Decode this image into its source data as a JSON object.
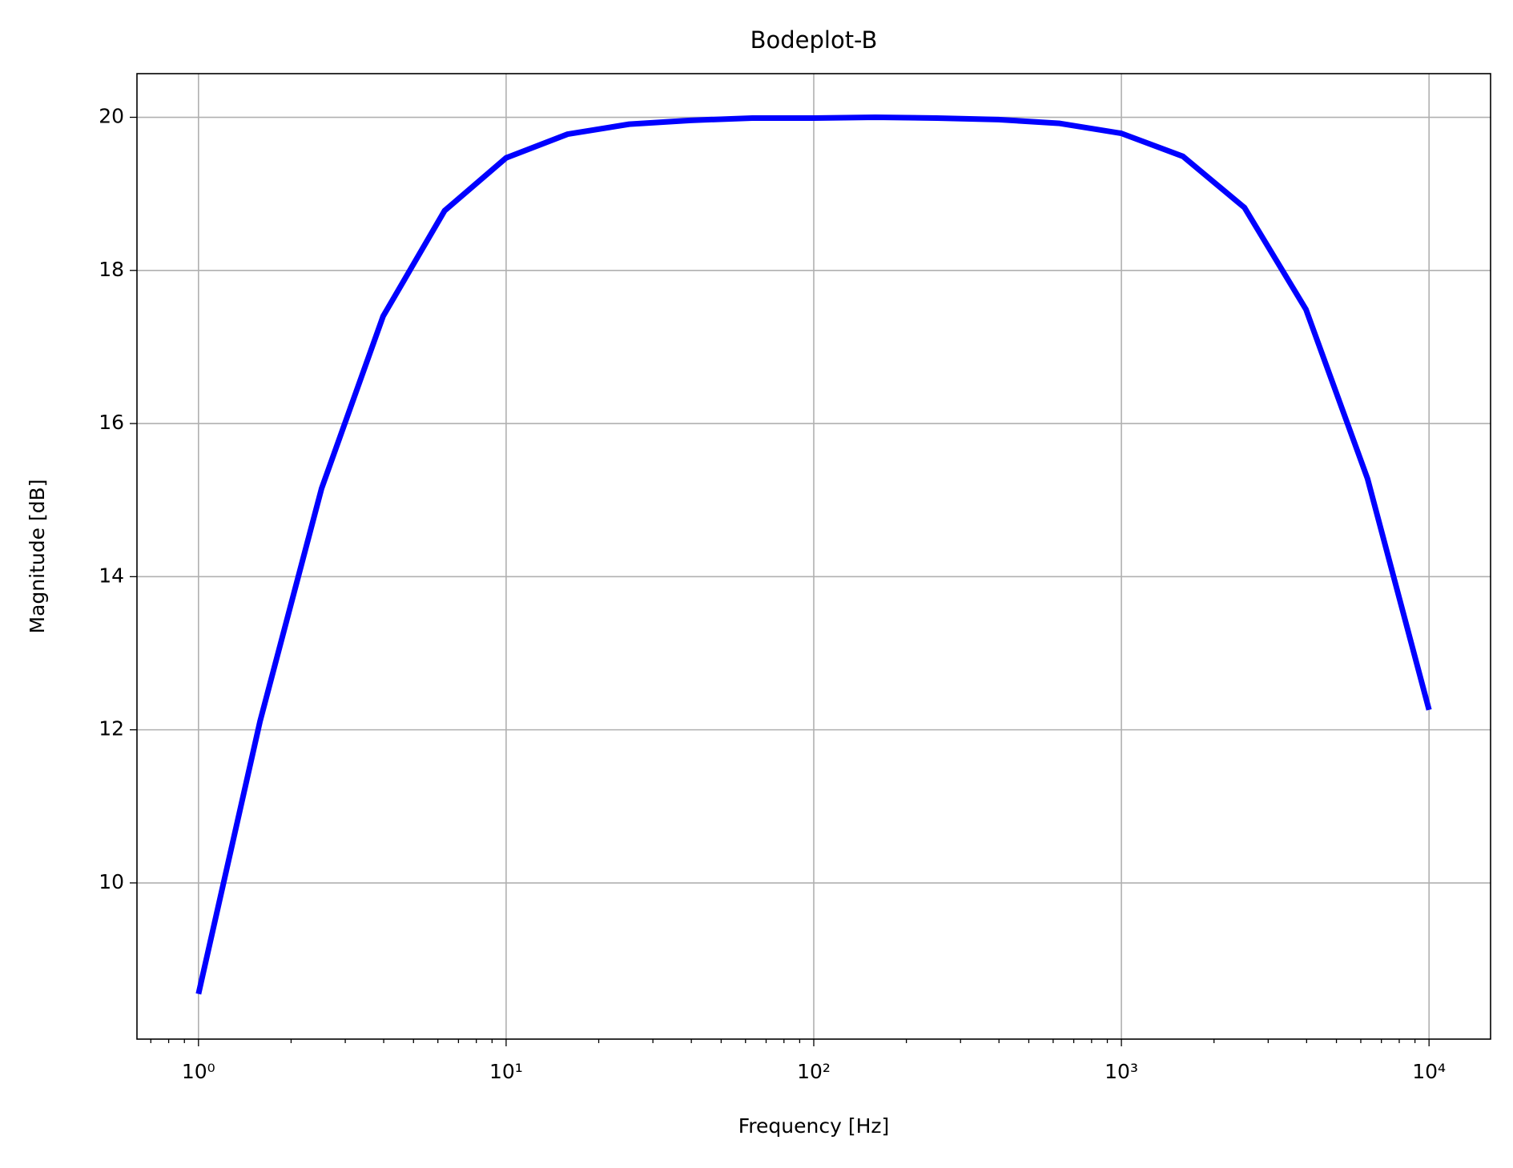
{
  "chart_data": {
    "type": "line",
    "title": "Bodeplot-B",
    "x_label": "Frequency [Hz]",
    "y_label": "Magnitude [dB]",
    "x": [
      1,
      1.585,
      2.512,
      3.981,
      6.31,
      10,
      15.85,
      25.12,
      39.81,
      63.1,
      100,
      158.5,
      251.2,
      398.1,
      631,
      1000,
      1585,
      2512,
      3981,
      6310,
      10000
    ],
    "series": [
      {
        "color": "#0000ff",
        "values": [
          8.55,
          12.11,
          15.15,
          17.4,
          18.78,
          19.47,
          19.78,
          19.91,
          19.96,
          19.99,
          19.99,
          20.0,
          19.99,
          19.97,
          19.92,
          19.79,
          19.49,
          18.82,
          17.49,
          15.28,
          12.26
        ]
      }
    ],
    "xscale": "log",
    "xlim": [
      0.631,
      15849
    ],
    "ylim": [
      7.96,
      20.57
    ],
    "xticks": [
      {
        "value": 1,
        "label": "10⁰"
      },
      {
        "value": 10,
        "label": "10¹"
      },
      {
        "value": 100,
        "label": "10²"
      },
      {
        "value": 1000,
        "label": "10³"
      },
      {
        "value": 10000,
        "label": "10⁴"
      }
    ],
    "xminorticks": [
      0.7,
      0.8,
      0.9,
      2,
      3,
      4,
      5,
      6,
      7,
      8,
      9,
      20,
      30,
      40,
      50,
      60,
      70,
      80,
      90,
      200,
      300,
      400,
      500,
      600,
      700,
      800,
      900,
      2000,
      3000,
      4000,
      5000,
      6000,
      7000,
      8000,
      9000
    ],
    "yticks": [
      10,
      12,
      14,
      16,
      18,
      20
    ],
    "grid": true
  }
}
